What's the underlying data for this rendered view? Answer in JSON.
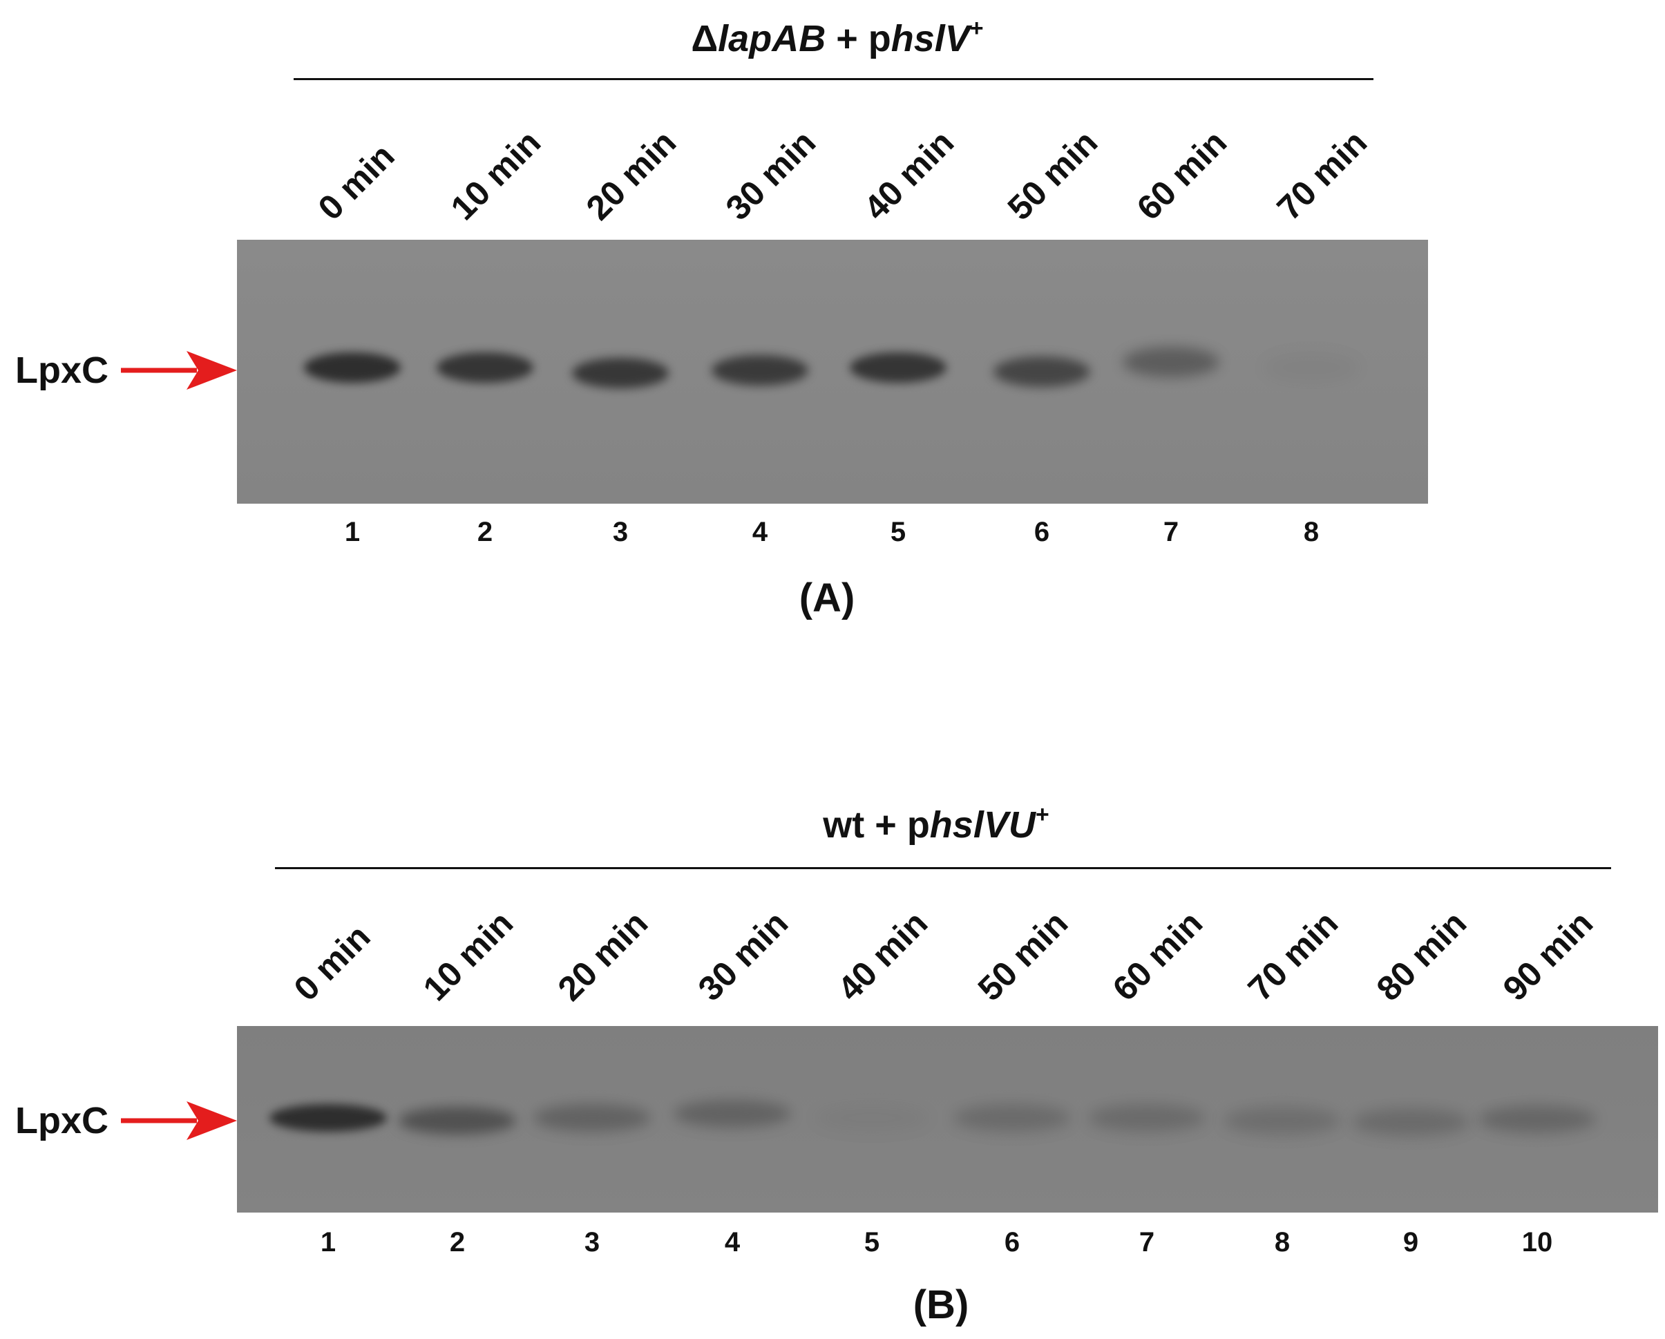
{
  "panel_a": {
    "title": {
      "delta": "Δ",
      "gene": "lapAB",
      "plus": " + p",
      "plasmid": "hslV",
      "sup": "+"
    },
    "lane_labels": [
      "0 min",
      "10 min",
      "20 min",
      "30 min",
      "40 min",
      "50 min",
      "60 min",
      "70 min"
    ],
    "lane_numbers": [
      "1",
      "2",
      "3",
      "4",
      "5",
      "6",
      "7",
      "8"
    ],
    "band_label": "LpxC",
    "band_intensity": [
      0.95,
      0.88,
      0.85,
      0.82,
      0.88,
      0.7,
      0.45,
      0.05
    ],
    "panel_label": "(A)"
  },
  "panel_b": {
    "title": {
      "prefix": "wt + p",
      "plasmid": "hslVU",
      "sup": "+"
    },
    "lane_labels": [
      "0 min",
      "10 min",
      "20 min",
      "30 min",
      "40 min",
      "50 min",
      "60 min",
      "70 min",
      "80 min",
      "90 min"
    ],
    "lane_numbers": [
      "1",
      "2",
      "3",
      "4",
      "5",
      "6",
      "7",
      "8",
      "9",
      "10"
    ],
    "band_label": "LpxC",
    "band_intensity": [
      0.95,
      0.55,
      0.35,
      0.35,
      0.05,
      0.25,
      0.25,
      0.22,
      0.25,
      0.3
    ],
    "panel_label": "(B)"
  },
  "colors": {
    "arrow": "#e41d1d",
    "gel_background": "#868686",
    "band": "#2a2a2a"
  }
}
